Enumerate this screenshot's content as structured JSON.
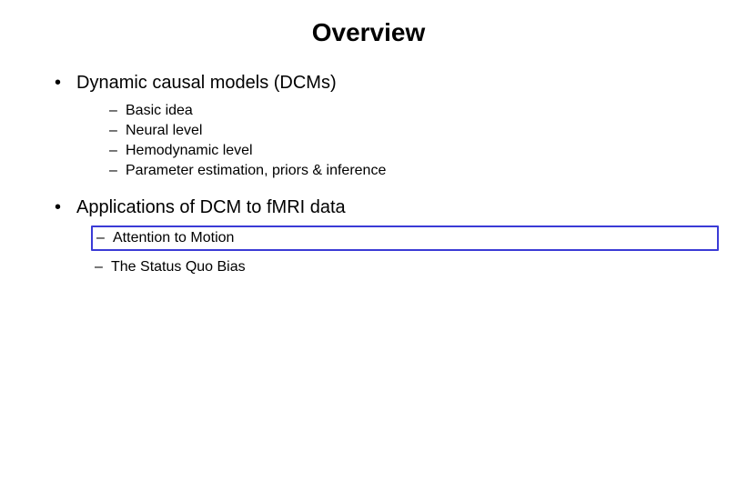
{
  "slide": {
    "title": "Overview",
    "title_fontsize": 28,
    "title_color": "#000000",
    "body_color": "#000000",
    "l1_fontsize": 20,
    "l2_fontsize": 16,
    "background_color": "#ffffff",
    "highlight_border_color": "#3b3bd6",
    "bullets": [
      {
        "text": "Dynamic causal models (DCMs)",
        "sub_gap": true,
        "subs": [
          {
            "text": "Basic idea"
          },
          {
            "text": "Neural level"
          },
          {
            "text": "Hemodynamic level"
          },
          {
            "text": "Parameter estimation, priors & inference"
          }
        ]
      },
      {
        "text": "Applications of DCM to fMRI data",
        "sub_gap": false,
        "subs": [
          {
            "text": "Attention to Motion",
            "highlight": true
          },
          {
            "text": "The Status Quo Bias"
          }
        ]
      }
    ]
  }
}
